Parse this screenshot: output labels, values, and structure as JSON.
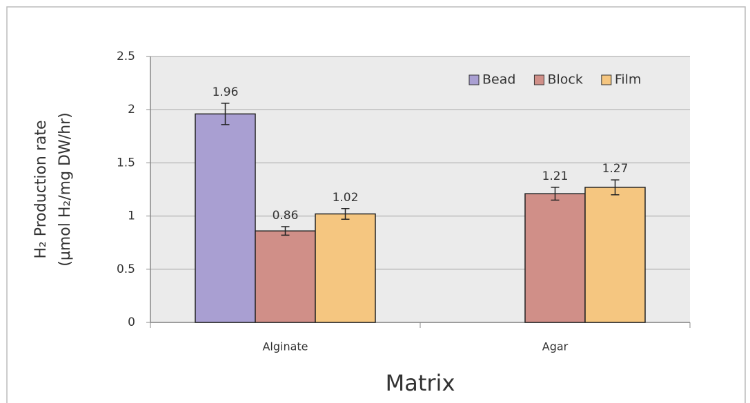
{
  "chart_data": {
    "type": "bar",
    "y_label": [
      "H₂ Production rate",
      "(µmol H₂/mg DW/hr)"
    ],
    "x_label": "Matrix",
    "categories": [
      "Alginate",
      "Agar"
    ],
    "series": [
      {
        "name": "Bead",
        "color": "#a99fd2",
        "values": [
          1.96,
          null
        ],
        "errors": [
          0.1,
          null
        ]
      },
      {
        "name": "Block",
        "color": "#d08f88",
        "values": [
          0.86,
          1.21
        ],
        "errors": [
          0.04,
          0.06
        ]
      },
      {
        "name": "Film",
        "color": "#f5c680",
        "values": [
          1.02,
          1.27
        ],
        "errors": [
          0.05,
          0.07
        ]
      }
    ],
    "ylim": [
      0,
      2.5
    ],
    "yticks": [
      0,
      0.5,
      1,
      1.5,
      2,
      2.5
    ],
    "grid": true,
    "legend": "upper right"
  }
}
